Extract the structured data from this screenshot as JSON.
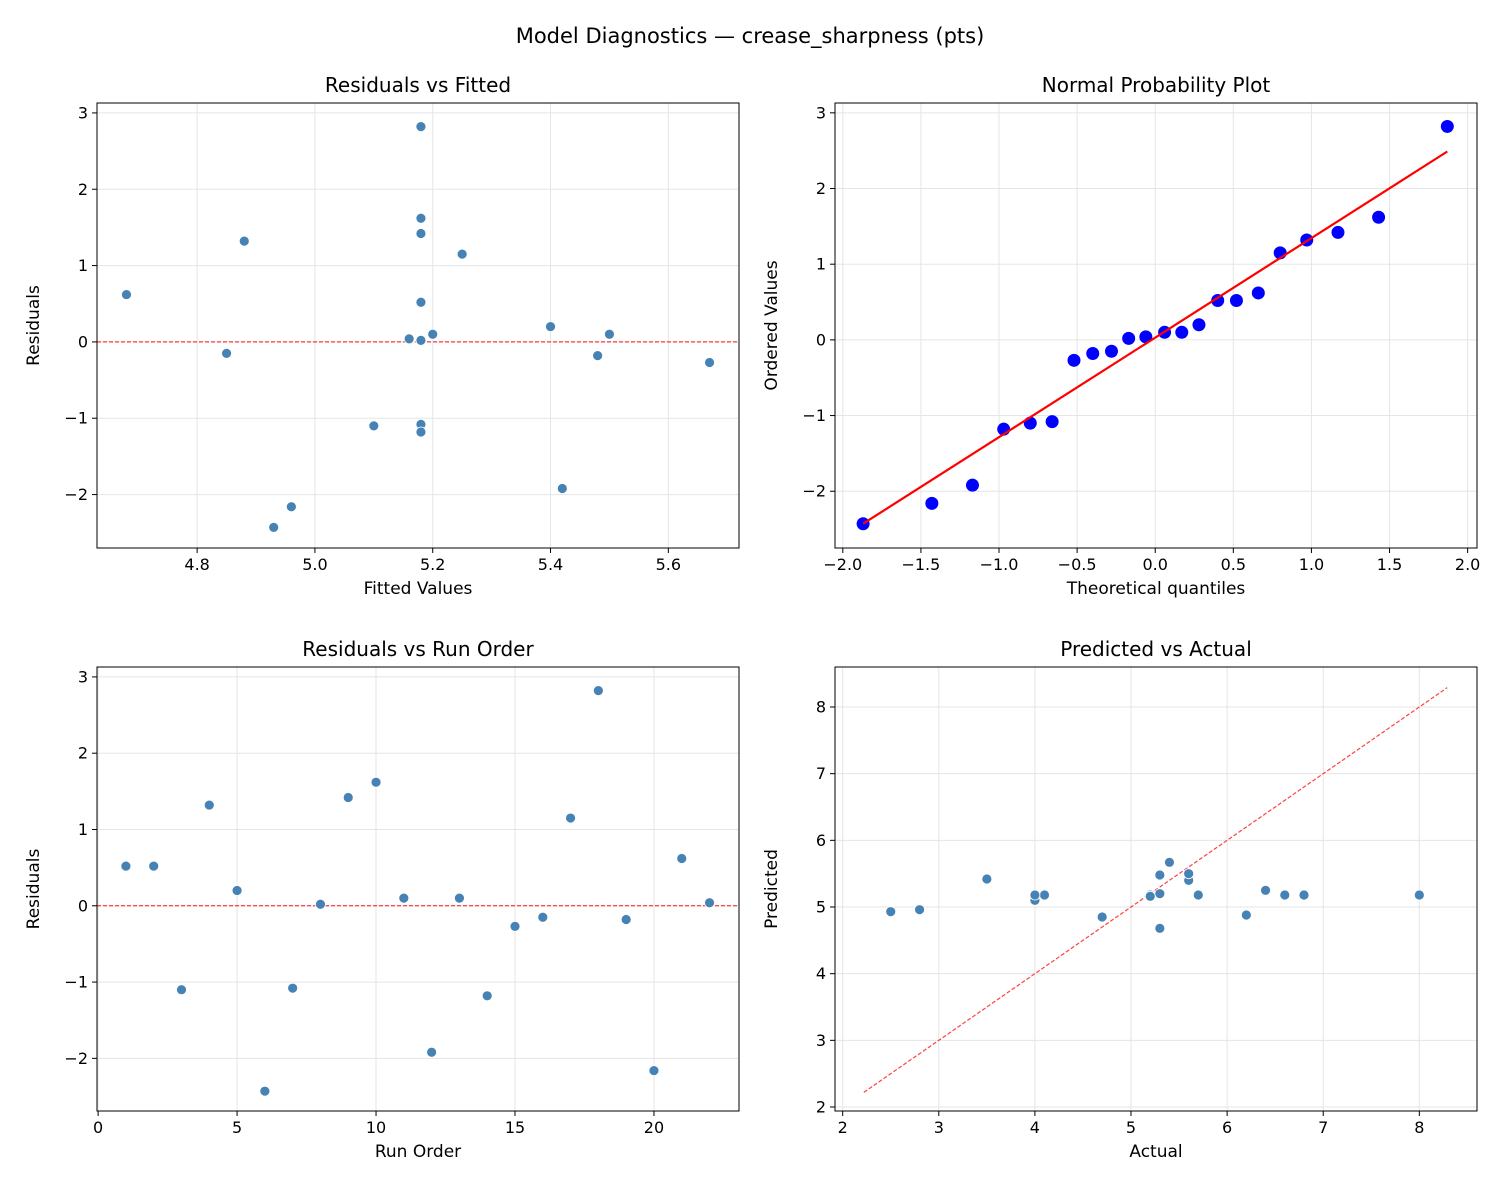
{
  "suptitle": "Model Diagnostics — crease_sharpness (pts)",
  "colors": {
    "point": "#4682b4",
    "point_edge": "#ffffff",
    "qq_point": "#0000ff",
    "fit_line": "#ff0000",
    "reference_line": "#ff0000",
    "grid": "#e5e5e5"
  },
  "chart_data": [
    {
      "type": "scatter",
      "title": "Residuals vs Fitted",
      "xlabel": "Fitted Values",
      "ylabel": "Residuals",
      "xlim": [
        4.63,
        5.72
      ],
      "ylim": [
        -2.7,
        3.13
      ],
      "xticks": [
        4.8,
        5.0,
        5.2,
        5.4,
        5.6
      ],
      "xtick_labels": [
        "4.8",
        "5.0",
        "5.2",
        "5.4",
        "5.6"
      ],
      "yticks": [
        -2,
        -1,
        0,
        1,
        2,
        3
      ],
      "ytick_labels": [
        "−2",
        "−1",
        "0",
        "1",
        "2",
        "3"
      ],
      "grid": true,
      "reference_line": {
        "type": "horizontal",
        "y": 0,
        "style": "dashed"
      },
      "x": [
        5.18,
        5.18,
        5.1,
        4.88,
        5.4,
        4.93,
        5.18,
        5.18,
        5.18,
        5.18,
        5.2,
        5.42,
        5.5,
        5.18,
        5.67,
        4.85,
        5.25,
        5.18,
        5.48,
        4.96,
        4.68,
        5.16
      ],
      "y": [
        0.52,
        0.52,
        -1.1,
        1.32,
        0.2,
        -2.43,
        -1.08,
        0.02,
        1.42,
        1.62,
        0.1,
        -1.92,
        0.1,
        -1.18,
        -0.27,
        -0.15,
        1.15,
        2.82,
        -0.18,
        -2.16,
        0.62,
        0.04
      ]
    },
    {
      "type": "scatter",
      "title": "Normal Probability Plot",
      "xlabel": "Theoretical quantiles",
      "ylabel": "Ordered Values",
      "xlim": [
        -2.05,
        2.06
      ],
      "ylim": [
        -2.75,
        3.13
      ],
      "xticks": [
        -2.0,
        -1.5,
        -1.0,
        -0.5,
        0.0,
        0.5,
        1.0,
        1.5,
        2.0
      ],
      "xtick_labels": [
        "−2.0",
        "−1.5",
        "−1.0",
        "−0.5",
        "0.0",
        "0.5",
        "1.0",
        "1.5",
        "2.0"
      ],
      "yticks": [
        -2,
        -1,
        0,
        1,
        2,
        3
      ],
      "ytick_labels": [
        "−2",
        "−1",
        "0",
        "1",
        "2",
        "3"
      ],
      "grid": true,
      "fit_line": {
        "slope": 1.315,
        "intercept": 0.03
      },
      "x": [
        -1.87,
        -1.43,
        -1.17,
        -0.97,
        -0.8,
        -0.66,
        -0.52,
        -0.4,
        -0.28,
        -0.17,
        -0.06,
        0.06,
        0.17,
        0.28,
        0.4,
        0.52,
        0.66,
        0.8,
        0.97,
        1.17,
        1.43,
        1.87
      ],
      "y": [
        -2.43,
        -2.16,
        -1.92,
        -1.18,
        -1.1,
        -1.08,
        -0.27,
        -0.18,
        -0.15,
        0.02,
        0.04,
        0.1,
        0.1,
        0.2,
        0.52,
        0.52,
        0.62,
        1.15,
        1.32,
        1.42,
        1.62,
        2.82
      ]
    },
    {
      "type": "scatter",
      "title": "Residuals vs Run Order",
      "xlabel": "Run Order",
      "ylabel": "Residuals",
      "xlim": [
        -0.04,
        23.06
      ],
      "ylim": [
        -2.69,
        3.13
      ],
      "xticks": [
        0,
        5,
        10,
        15,
        20
      ],
      "xtick_labels": [
        "0",
        "5",
        "10",
        "15",
        "20"
      ],
      "yticks": [
        -2,
        -1,
        0,
        1,
        2,
        3
      ],
      "ytick_labels": [
        "−2",
        "−1",
        "0",
        "1",
        "2",
        "3"
      ],
      "grid": true,
      "reference_line": {
        "type": "horizontal",
        "y": 0,
        "style": "dashed"
      },
      "x": [
        1,
        2,
        3,
        4,
        5,
        6,
        7,
        8,
        9,
        10,
        11,
        12,
        13,
        14,
        15,
        16,
        17,
        18,
        19,
        20,
        21,
        22
      ],
      "y": [
        0.52,
        0.52,
        -1.1,
        1.32,
        0.2,
        -2.43,
        -1.08,
        0.02,
        1.42,
        1.62,
        0.1,
        -1.92,
        0.1,
        -1.18,
        -0.27,
        -0.15,
        1.15,
        2.82,
        -0.18,
        -2.16,
        0.62,
        0.04
      ]
    },
    {
      "type": "scatter",
      "title": "Predicted vs Actual",
      "xlabel": "Actual",
      "ylabel": "Predicted",
      "xlim": [
        1.92,
        8.6
      ],
      "ylim": [
        1.94,
        8.6
      ],
      "xticks": [
        2,
        3,
        4,
        5,
        6,
        7,
        8
      ],
      "xtick_labels": [
        "2",
        "3",
        "4",
        "5",
        "6",
        "7",
        "8"
      ],
      "yticks": [
        2,
        3,
        4,
        5,
        6,
        7,
        8
      ],
      "ytick_labels": [
        "2",
        "3",
        "4",
        "5",
        "6",
        "7",
        "8"
      ],
      "grid": true,
      "reference_line": {
        "type": "diagonal",
        "from": 2.22,
        "to": 8.29,
        "style": "dashed"
      },
      "x": [
        5.7,
        5.7,
        4.0,
        6.2,
        5.6,
        2.5,
        4.1,
        5.2,
        6.6,
        6.8,
        5.3,
        3.5,
        5.6,
        4.0,
        5.4,
        4.7,
        6.4,
        8.0,
        5.3,
        2.8,
        5.3,
        5.2
      ],
      "y": [
        5.18,
        5.18,
        5.1,
        4.88,
        5.4,
        4.93,
        5.18,
        5.18,
        5.18,
        5.18,
        5.2,
        5.42,
        5.5,
        5.18,
        5.67,
        4.85,
        5.25,
        5.18,
        5.48,
        4.96,
        4.68,
        5.16
      ]
    }
  ]
}
